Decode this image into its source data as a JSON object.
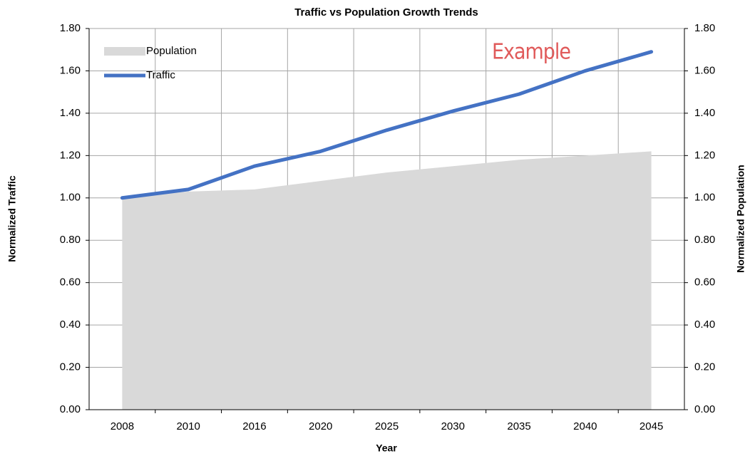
{
  "chart_data": {
    "type": "line_area",
    "title": "Traffic vs Population Growth Trends",
    "x_label": "Year",
    "y_label": "Normalized Traffic",
    "y2_label": "Normalized Population",
    "annotation": "Example",
    "categories": [
      "2008",
      "2010",
      "2016",
      "2020",
      "2025",
      "2030",
      "2035",
      "2040",
      "2045"
    ],
    "series": [
      {
        "name": "Population",
        "type": "area",
        "axis": "y2",
        "color": "#d9d9d9",
        "values": [
          1.0,
          1.03,
          1.04,
          1.08,
          1.12,
          1.15,
          1.18,
          1.2,
          1.22
        ]
      },
      {
        "name": "Traffic",
        "type": "line",
        "color": "#4472c4",
        "values": [
          1.0,
          1.04,
          1.15,
          1.22,
          1.32,
          1.41,
          1.49,
          1.6,
          1.69
        ]
      }
    ],
    "ylim": [
      0,
      1.8
    ],
    "yticks": [
      {
        "value": 0,
        "label": "0.00"
      },
      {
        "value": 0.2,
        "label": "0.20"
      },
      {
        "value": 0.4,
        "label": "0.40"
      },
      {
        "value": 0.6,
        "label": "0.60"
      },
      {
        "value": 0.8,
        "label": "0.80"
      },
      {
        "value": 1.0,
        "label": "1.00"
      },
      {
        "value": 1.2,
        "label": "1.20"
      },
      {
        "value": 1.4,
        "label": "1.40"
      },
      {
        "value": 1.6,
        "label": "1.60"
      },
      {
        "value": 1.8,
        "label": "1.80"
      }
    ],
    "y2lim": [
      0,
      1.8
    ],
    "y2ticks": [
      {
        "value": 0,
        "label": "0.00"
      },
      {
        "value": 0.2,
        "label": "0.20"
      },
      {
        "value": 0.4,
        "label": "0.40"
      },
      {
        "value": 0.6,
        "label": "0.60"
      },
      {
        "value": 0.8,
        "label": "0.80"
      },
      {
        "value": 1.0,
        "label": "1.00"
      },
      {
        "value": 1.2,
        "label": "1.20"
      },
      {
        "value": 1.4,
        "label": "1.40"
      },
      {
        "value": 1.6,
        "label": "1.60"
      },
      {
        "value": 1.8,
        "label": "1.80"
      }
    ],
    "grid": true,
    "legend": "top-left"
  }
}
